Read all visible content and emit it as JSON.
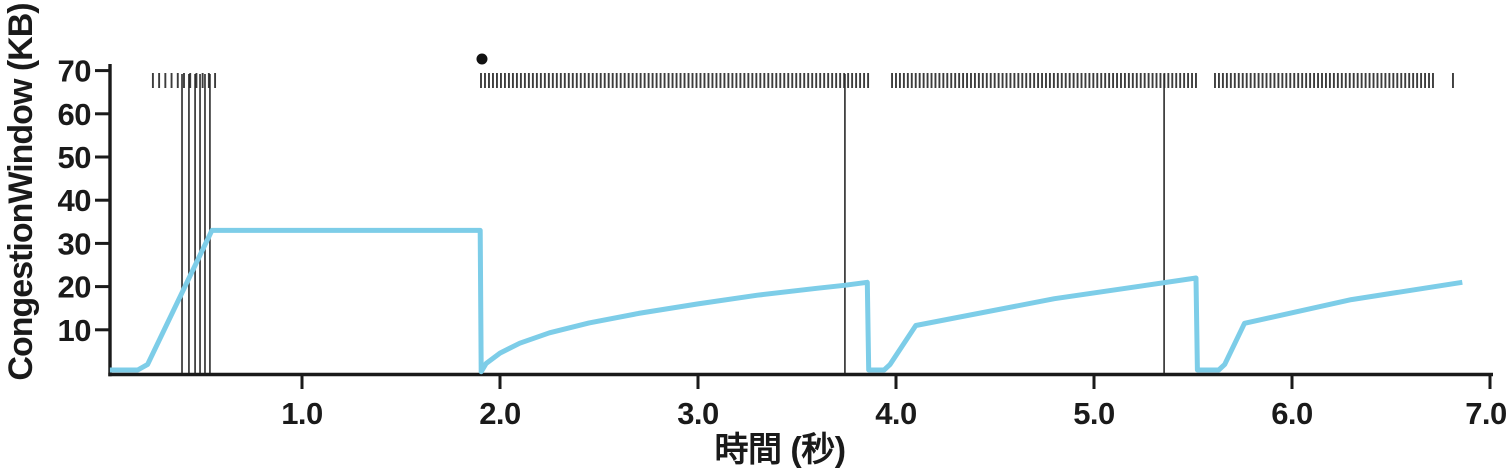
{
  "chart_data": {
    "type": "line",
    "title": "",
    "xlabel": "時間 (秒)",
    "ylabel": "CongestionWindow (KB)",
    "xlim": [
      0,
      7.0
    ],
    "ylim": [
      0,
      70
    ],
    "grid": false,
    "legend": null,
    "axis_color": "#1a1a1a",
    "tick_mark_color": "#3c3c3c",
    "event_line_color": "#2a2a2a",
    "dot_color": "#111111",
    "x_ticks": [
      {
        "value": 1.0,
        "label": "1.0"
      },
      {
        "value": 2.0,
        "label": "2.0"
      },
      {
        "value": 3.0,
        "label": "3.0"
      },
      {
        "value": 4.0,
        "label": "4.0"
      },
      {
        "value": 5.0,
        "label": "5.0"
      },
      {
        "value": 6.0,
        "label": "6.0"
      },
      {
        "value": 7.0,
        "label": "7.0"
      }
    ],
    "y_ticks": [
      {
        "value": 10,
        "label": "10"
      },
      {
        "value": 20,
        "label": "20"
      },
      {
        "value": 30,
        "label": "30"
      },
      {
        "value": 40,
        "label": "40"
      },
      {
        "value": 50,
        "label": "50"
      },
      {
        "value": 60,
        "label": "60"
      },
      {
        "value": 70,
        "label": "70"
      }
    ],
    "series": [
      {
        "name": "congestion-window-kb",
        "color": "#7DCDE8",
        "stroke_width": 5,
        "points": [
          [
            0.03,
            0.7
          ],
          [
            0.17,
            0.7
          ],
          [
            0.22,
            2.0
          ],
          [
            0.545,
            33.0
          ],
          [
            1.9,
            33.0
          ],
          [
            1.905,
            0.3
          ],
          [
            1.93,
            2.2
          ],
          [
            2.0,
            4.6
          ],
          [
            2.1,
            6.9
          ],
          [
            2.25,
            9.3
          ],
          [
            2.45,
            11.6
          ],
          [
            2.7,
            13.8
          ],
          [
            3.0,
            16.0
          ],
          [
            3.3,
            18.0
          ],
          [
            3.6,
            19.6
          ],
          [
            3.74,
            20.3
          ],
          [
            3.855,
            21.0
          ],
          [
            3.862,
            0.7
          ],
          [
            3.94,
            0.7
          ],
          [
            3.97,
            2.0
          ],
          [
            4.1,
            11.0
          ],
          [
            4.8,
            17.2
          ],
          [
            5.515,
            22.0
          ],
          [
            5.522,
            0.7
          ],
          [
            5.63,
            0.7
          ],
          [
            5.66,
            2.0
          ],
          [
            5.76,
            11.5
          ],
          [
            6.3,
            17.0
          ],
          [
            6.86,
            21.0
          ]
        ]
      }
    ],
    "loss_event_lines_t": [
      0.394,
      0.429,
      0.46,
      0.485,
      0.51,
      0.535,
      3.742,
      5.354
    ],
    "timeout_dot_t": 1.909,
    "transmission_tick_clusters": [
      {
        "t_start": 0.247,
        "t_end": 0.561,
        "count": 11
      },
      {
        "t_start": 1.904,
        "t_end": 3.859,
        "count": 98
      },
      {
        "t_start": 3.98,
        "t_end": 5.515,
        "count": 78
      },
      {
        "t_start": 5.611,
        "t_end": 6.712,
        "count": 56
      },
      {
        "t_start": 6.813,
        "t_end": 6.813,
        "count": 1
      }
    ]
  }
}
